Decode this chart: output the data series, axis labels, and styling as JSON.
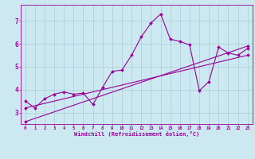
{
  "xlabel": "Windchill (Refroidissement éolien,°C)",
  "background_color": "#cce8f0",
  "line_color": "#990099",
  "xlim": [
    -0.5,
    23.5
  ],
  "ylim": [
    2.5,
    7.7
  ],
  "yticks": [
    3,
    4,
    5,
    6,
    7
  ],
  "xticks": [
    0,
    1,
    2,
    3,
    4,
    5,
    6,
    7,
    8,
    9,
    10,
    11,
    12,
    13,
    14,
    15,
    16,
    17,
    18,
    19,
    20,
    21,
    22,
    23
  ],
  "grid_color": "#aaccd8",
  "series1_x": [
    0,
    1,
    2,
    3,
    4,
    5,
    6,
    7,
    8,
    9,
    10,
    11,
    12,
    13,
    14,
    15,
    16,
    17,
    18,
    19,
    20,
    21,
    22,
    23
  ],
  "series1_y": [
    3.5,
    3.2,
    3.6,
    3.8,
    3.9,
    3.8,
    3.85,
    3.35,
    4.1,
    4.8,
    4.85,
    5.5,
    6.3,
    6.9,
    7.3,
    6.2,
    6.1,
    5.95,
    3.95,
    4.35,
    5.85,
    5.6,
    5.5,
    5.8
  ],
  "series2_x": [
    0,
    23
  ],
  "series2_y": [
    3.2,
    5.5
  ],
  "series3_x": [
    0,
    23
  ],
  "series3_y": [
    2.6,
    5.9
  ]
}
